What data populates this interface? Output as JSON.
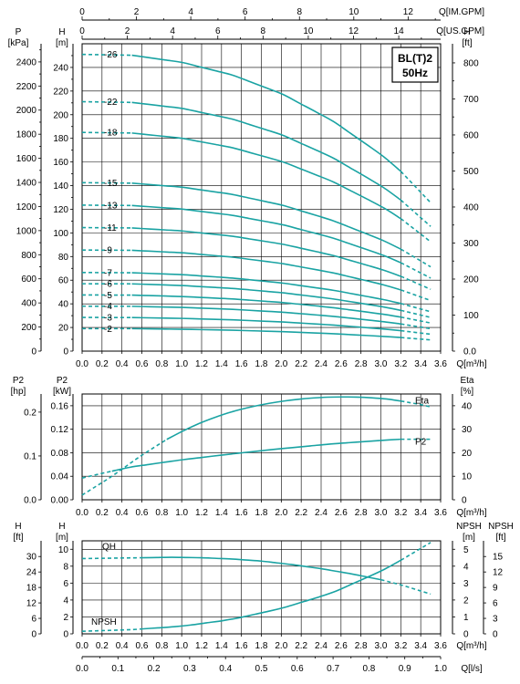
{
  "model": {
    "line1": "BL(T)2",
    "line2": "50Hz"
  },
  "units": {
    "imp_gpm": "Q[IM.GPM]",
    "us_gpm": "Q[US.GPM]",
    "q_m3h": "Q[m³/h]",
    "q_ls": "Q[l/s]",
    "p_kpa_name": "P",
    "p_kpa_unit": "[kPa]",
    "h_m_name": "H",
    "h_m_unit": "[m]",
    "h_ft_name": "H",
    "h_ft_unit": "[ft]",
    "p2_hp_name": "P2",
    "p2_hp_unit": "[hp]",
    "p2_kw_name": "P2",
    "p2_kw_unit": "[kW]",
    "eta_name": "Eta",
    "eta_unit": "[%]",
    "npsh_m_name": "NPSH",
    "npsh_m_unit": "[m]",
    "npsh_ft_name": "NPSH",
    "npsh_ft_unit": "[ft]"
  },
  "chart_data": [
    {
      "type": "line",
      "title": "BL(T)2 50Hz",
      "x_label": "Q[m³/h]",
      "x_range": [
        0,
        3.6
      ],
      "x_ticks": [
        "0.0",
        "0.2",
        "0.4",
        "0.6",
        "0.8",
        "1.0",
        "1.2",
        "1.4",
        "1.6",
        "1.8",
        "2.0",
        "2.2",
        "2.4",
        "2.6",
        "2.8",
        "3.0",
        "3.2",
        "3.4",
        "3.6"
      ],
      "y_label": "H[m]",
      "y_range": [
        0,
        260
      ],
      "y_ticks": [
        "0",
        "20",
        "40",
        "60",
        "80",
        "100",
        "120",
        "140",
        "160",
        "180",
        "200",
        "220",
        "240"
      ],
      "left_secondary_axis": {
        "label": "P[kPa]",
        "ticks": [
          "0",
          "200",
          "400",
          "600",
          "800",
          "1000",
          "1200",
          "1400",
          "1600",
          "1800",
          "2000",
          "2200",
          "2400"
        ]
      },
      "right_axis": {
        "label": "H[ft]",
        "ticks": [
          "0.0",
          "100",
          "200",
          "300",
          "400",
          "500",
          "600",
          "700",
          "800"
        ]
      },
      "top_axes": [
        {
          "label": "Q[IM.GPM]",
          "ticks": [
            "0",
            "2",
            "4",
            "6",
            "8",
            "10",
            "12"
          ]
        },
        {
          "label": "Q[US.GPM]",
          "ticks": [
            "0",
            "2",
            "4",
            "6",
            "8",
            "10",
            "12",
            "14"
          ]
        }
      ],
      "solid_range_m3h": [
        0.5,
        3.2
      ],
      "series": [
        {
          "name": "-2",
          "x": [
            0.0,
            0.5,
            1.0,
            1.5,
            2.0,
            2.5,
            3.0,
            3.2,
            3.5
          ],
          "y": [
            19.0,
            19.0,
            18.5,
            17.7,
            16.5,
            14.8,
            12.6,
            11.5,
            9.5
          ]
        },
        {
          "name": "-3",
          "x": [
            0.0,
            0.5,
            1.0,
            1.5,
            2.0,
            2.5,
            3.0,
            3.2,
            3.5
          ],
          "y": [
            28.5,
            28.4,
            27.7,
            26.5,
            24.7,
            22.2,
            18.9,
            17.3,
            14.3
          ]
        },
        {
          "name": "-4",
          "x": [
            0.0,
            0.5,
            1.0,
            1.5,
            2.0,
            2.5,
            3.0,
            3.2,
            3.5
          ],
          "y": [
            38.0,
            37.9,
            37.0,
            35.4,
            33.0,
            29.6,
            25.2,
            23.0,
            19.0
          ]
        },
        {
          "name": "-5",
          "x": [
            0.0,
            0.5,
            1.0,
            1.5,
            2.0,
            2.5,
            3.0,
            3.2,
            3.5
          ],
          "y": [
            47.5,
            47.4,
            46.2,
            44.2,
            41.2,
            37.0,
            31.5,
            28.8,
            23.8
          ]
        },
        {
          "name": "-6",
          "x": [
            0.0,
            0.5,
            1.0,
            1.5,
            2.0,
            2.5,
            3.0,
            3.2,
            3.5
          ],
          "y": [
            57.0,
            56.9,
            55.5,
            53.1,
            49.5,
            44.4,
            37.8,
            34.5,
            28.5
          ]
        },
        {
          "name": "-7",
          "x": [
            0.0,
            0.5,
            1.0,
            1.5,
            2.0,
            2.5,
            3.0,
            3.2,
            3.5
          ],
          "y": [
            66.5,
            66.3,
            64.7,
            61.9,
            57.7,
            51.8,
            44.1,
            40.3,
            33.3
          ]
        },
        {
          "name": "-9",
          "x": [
            0.0,
            0.5,
            1.0,
            1.5,
            2.0,
            2.5,
            3.0,
            3.2,
            3.5
          ],
          "y": [
            85.5,
            85.3,
            83.2,
            79.6,
            74.2,
            66.6,
            56.7,
            51.8,
            42.8
          ]
        },
        {
          "name": "-11",
          "x": [
            0.0,
            0.5,
            1.0,
            1.5,
            2.0,
            2.5,
            3.0,
            3.2,
            3.5
          ],
          "y": [
            104.5,
            104.2,
            101.7,
            97.3,
            90.7,
            81.4,
            69.3,
            63.3,
            52.3
          ]
        },
        {
          "name": "-13",
          "x": [
            0.0,
            0.5,
            1.0,
            1.5,
            2.0,
            2.5,
            3.0,
            3.2,
            3.5
          ],
          "y": [
            123.5,
            123.2,
            120.2,
            115.0,
            107.2,
            96.2,
            81.9,
            74.8,
            61.8
          ]
        },
        {
          "name": "-15",
          "x": [
            0.0,
            0.5,
            1.0,
            1.5,
            2.0,
            2.5,
            3.0,
            3.2,
            3.5
          ],
          "y": [
            142.5,
            142.1,
            138.7,
            132.7,
            123.7,
            111.0,
            94.5,
            86.3,
            71.3
          ]
        },
        {
          "name": "-18",
          "x": [
            0.0,
            0.5,
            1.0,
            1.5,
            2.0,
            2.5,
            3.0,
            3.2,
            3.5
          ],
          "y": [
            185.0,
            184.5,
            180.1,
            172.3,
            160.6,
            144.1,
            122.7,
            112.1,
            92.5
          ]
        },
        {
          "name": "-22",
          "x": [
            0.0,
            0.5,
            1.0,
            1.5,
            2.0,
            2.5,
            3.0,
            3.2,
            3.5
          ],
          "y": [
            211.0,
            210.4,
            205.4,
            196.5,
            183.2,
            164.4,
            140.0,
            127.8,
            105.5
          ]
        },
        {
          "name": "-26",
          "x": [
            0.0,
            0.5,
            1.0,
            1.5,
            2.0,
            2.5,
            3.0,
            3.2,
            3.5
          ],
          "y": [
            251.0,
            250.3,
            244.3,
            233.8,
            217.9,
            195.6,
            166.5,
            152.1,
            125.5
          ]
        }
      ]
    },
    {
      "type": "line",
      "x_label": "Q[m³/h]",
      "x_range": [
        0,
        3.6
      ],
      "x_ticks": [
        "0.0",
        "0.2",
        "0.4",
        "0.6",
        "0.8",
        "1.0",
        "1.2",
        "1.4",
        "1.6",
        "1.8",
        "2.0",
        "2.2",
        "2.4",
        "2.6",
        "2.8",
        "3.0",
        "3.2",
        "3.4",
        "3.6"
      ],
      "y_label": "P2[kW]",
      "y_range": [
        0,
        0.18
      ],
      "y_ticks": [
        "0.00",
        "0.04",
        "0.08",
        "0.12",
        "0.16"
      ],
      "left_secondary_axis": {
        "label": "P2[hp]",
        "ticks": [
          "0.0",
          "0.1",
          "0.2"
        ]
      },
      "right_axis": {
        "label": "Eta[%]",
        "ticks": [
          "0",
          "10",
          "20",
          "30",
          "40"
        ]
      },
      "series": [
        {
          "name": "Eta",
          "axis": "right",
          "x": [
            0.0,
            0.3,
            0.6,
            0.9,
            1.2,
            1.5,
            1.8,
            2.1,
            2.4,
            2.7,
            3.0,
            3.2,
            3.4,
            3.5
          ],
          "y": [
            2,
            10,
            19,
            27,
            33,
            37.5,
            40.5,
            42.5,
            43.6,
            43.8,
            43.2,
            42,
            40.5,
            39.5
          ]
        },
        {
          "name": "P2",
          "axis": "left",
          "x": [
            0.0,
            0.2,
            0.5,
            1.0,
            1.5,
            2.0,
            2.5,
            3.0,
            3.2,
            3.5
          ],
          "y": [
            0.037,
            0.045,
            0.056,
            0.068,
            0.078,
            0.087,
            0.095,
            0.101,
            0.103,
            0.103
          ]
        }
      ]
    },
    {
      "type": "line",
      "x_label": "Q[m³/h]",
      "x_range": [
        0,
        3.6
      ],
      "x_ticks": [
        "0.0",
        "0.2",
        "0.4",
        "0.6",
        "0.8",
        "1.0",
        "1.2",
        "1.4",
        "1.6",
        "1.8",
        "2.0",
        "2.2",
        "2.4",
        "2.6",
        "2.8",
        "3.0",
        "3.2",
        "3.4",
        "3.6"
      ],
      "bottom_secondary_axis": {
        "label": "Q[l/s]",
        "ticks": [
          "0.0",
          "0.1",
          "0.2",
          "0.3",
          "0.4",
          "0.5",
          "0.6",
          "0.7",
          "0.8",
          "0.9",
          "1.0"
        ]
      },
      "y_label": "H[m]",
      "y_range": [
        0,
        11
      ],
      "y_ticks": [
        "0",
        "2",
        "4",
        "6",
        "8",
        "10"
      ],
      "left_secondary_axis": {
        "label": "H[ft]",
        "ticks": [
          "0",
          "6",
          "12",
          "18",
          "24",
          "30"
        ]
      },
      "right_axis": {
        "label": "NPSH[m]",
        "ticks": [
          "0",
          "1",
          "2",
          "3",
          "4",
          "5"
        ]
      },
      "right_secondary_axis": {
        "label": "NPSH[ft]",
        "ticks": [
          "0",
          "3",
          "6",
          "9",
          "12",
          "15"
        ]
      },
      "series": [
        {
          "name": "QH",
          "axis": "left",
          "x": [
            0.0,
            0.3,
            0.6,
            0.9,
            1.2,
            1.5,
            1.8,
            2.1,
            2.4,
            2.7,
            3.0,
            3.2,
            3.5
          ],
          "y": [
            8.9,
            8.95,
            9.0,
            9.05,
            9.0,
            8.85,
            8.6,
            8.2,
            7.7,
            7.1,
            6.4,
            5.8,
            4.7
          ]
        },
        {
          "name": "NPSH",
          "axis": "right",
          "x": [
            0.0,
            0.5,
            1.0,
            1.5,
            2.0,
            2.5,
            3.0,
            3.2,
            3.5
          ],
          "y": [
            0.15,
            0.25,
            0.45,
            0.85,
            1.5,
            2.4,
            3.7,
            4.35,
            5.4
          ]
        }
      ]
    }
  ]
}
